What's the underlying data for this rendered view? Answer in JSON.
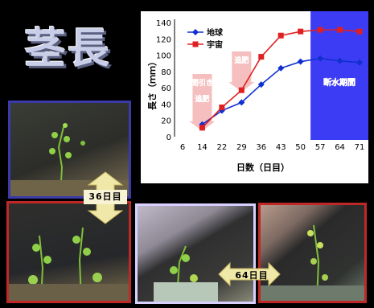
{
  "title": "茎長",
  "arrow_36": "36日目",
  "arrow_64": "64日目",
  "chart_data": {
    "type": "line",
    "ylabel": "長さ（ｍｍ）",
    "xlabel": "日数（日目）",
    "categories": [
      "6",
      "14",
      "22",
      "29",
      "36",
      "43",
      "50",
      "57",
      "64",
      "71"
    ],
    "ylim": [
      0,
      140
    ],
    "yticks": [
      0,
      20,
      40,
      60,
      80,
      100,
      120,
      140
    ],
    "series": [
      {
        "name": "地球",
        "color": "#1030d0",
        "marker": "diamond",
        "x": [
          "14",
          "22",
          "29",
          "36",
          "43",
          "50",
          "57",
          "64",
          "71"
        ],
        "values": [
          15,
          32,
          42,
          64,
          84,
          92,
          96,
          93,
          91
        ]
      },
      {
        "name": "宇宙",
        "color": "#e02020",
        "marker": "square",
        "x": [
          "14",
          "22",
          "29",
          "36",
          "43",
          "50",
          "57",
          "64",
          "71"
        ],
        "values": [
          11,
          36,
          57,
          98,
          124,
          129,
          131,
          131,
          129
        ]
      }
    ],
    "annotations": [
      {
        "text": "間引き",
        "color": "#ffffff"
      },
      {
        "text": "追肥",
        "color": "#ffffff"
      },
      {
        "text": "追肥",
        "color": "#ffffff"
      },
      {
        "text": "断水期間",
        "color": "#ffffff"
      }
    ],
    "annotation_colors": {
      "arrow": "#f4b8b8",
      "band": "#3c3cf4",
      "annotation_text": "#d9324a",
      "annotation_text_shadow": "#ffffff"
    },
    "legend_position": "top-left",
    "grid": false
  },
  "colors": {
    "background": "#000000",
    "title": "#c9cee8",
    "frame_blue": "#3a3aa8",
    "frame_red": "#c02828",
    "arrow_fill": "#f0e8a8"
  }
}
